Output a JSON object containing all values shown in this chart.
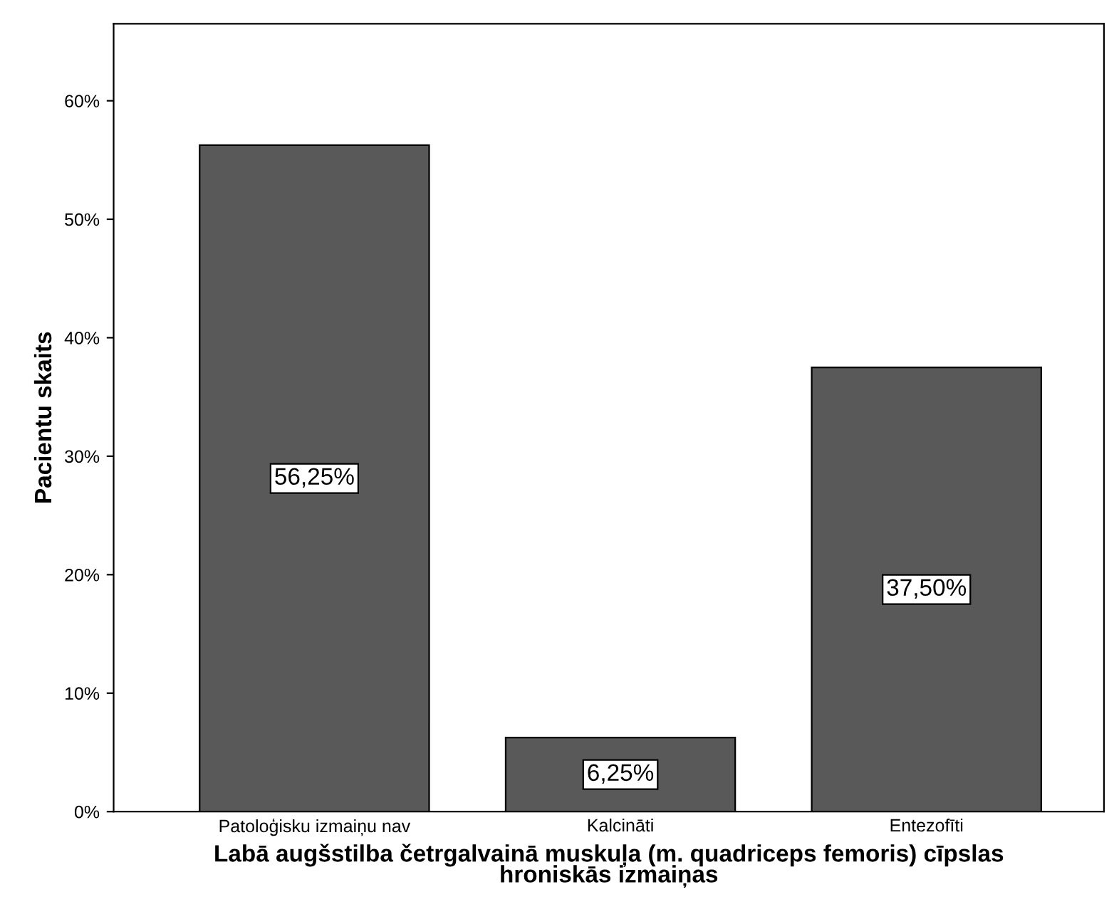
{
  "chart_data": {
    "type": "bar",
    "xlabel": "Labā augšstilba četrgalvainā muskuļa (m. quadriceps femoris) cīpslas\nhroniskās izmaiņas",
    "ylabel": "Pacientu skaits",
    "categories": [
      "Patoloģisku izmaiņu nav",
      "Kalcināti",
      "Entezofīti"
    ],
    "values": [
      56.25,
      6.25,
      37.5
    ],
    "value_labels": [
      "56,25%",
      "6,25%",
      "37,50%"
    ],
    "color": "#595959",
    "ylim": [
      0,
      66.5
    ],
    "yticks": [
      {
        "value": 0,
        "label": "0%"
      },
      {
        "value": 10,
        "label": "10%"
      },
      {
        "value": 20,
        "label": "20%"
      },
      {
        "value": 30,
        "label": "30%"
      },
      {
        "value": 40,
        "label": "40%"
      },
      {
        "value": 50,
        "label": "50%"
      },
      {
        "value": 60,
        "label": "60%"
      }
    ],
    "grid": false,
    "legend": false
  }
}
